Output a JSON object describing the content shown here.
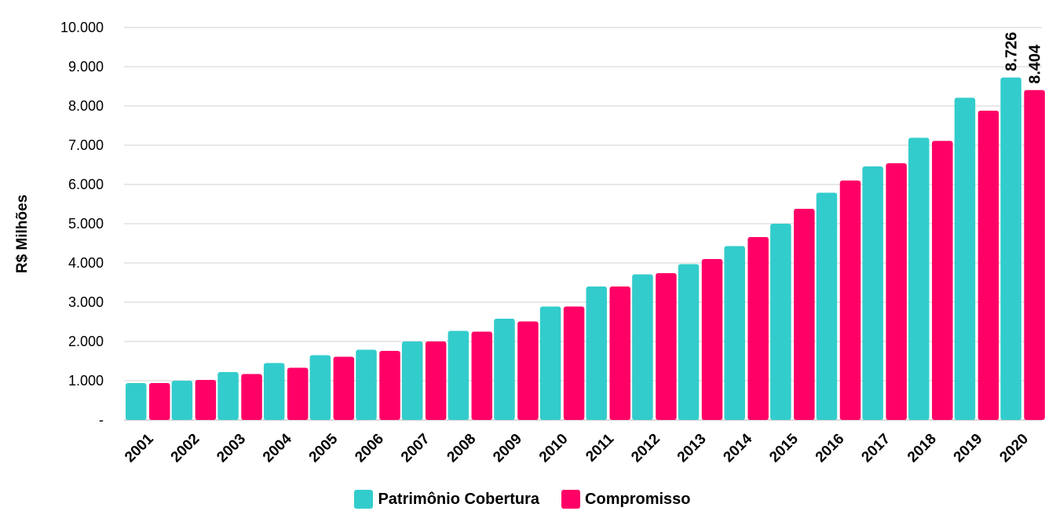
{
  "chart_data": {
    "type": "bar",
    "title": "",
    "xlabel": "",
    "ylabel": "R$ Milhões",
    "ylim": [
      0,
      10000
    ],
    "y_ticks": [
      {
        "value": 0,
        "label": "-"
      },
      {
        "value": 1000,
        "label": "1.000"
      },
      {
        "value": 2000,
        "label": "2.000"
      },
      {
        "value": 3000,
        "label": "3.000"
      },
      {
        "value": 4000,
        "label": "4.000"
      },
      {
        "value": 5000,
        "label": "5.000"
      },
      {
        "value": 6000,
        "label": "6.000"
      },
      {
        "value": 7000,
        "label": "7.000"
      },
      {
        "value": 8000,
        "label": "8.000"
      },
      {
        "value": 9000,
        "label": "9.000"
      },
      {
        "value": 10000,
        "label": "10.000"
      }
    ],
    "grid": true,
    "legend_position": "bottom",
    "categories": [
      "2001",
      "2002",
      "2003",
      "2004",
      "2005",
      "2006",
      "2007",
      "2008",
      "2009",
      "2010",
      "2011",
      "2012",
      "2013",
      "2014",
      "2015",
      "2016",
      "2017",
      "2018",
      "2019",
      "2020"
    ],
    "series": [
      {
        "name": "Patrimônio Cobertura",
        "color": "#33cccc",
        "values": [
          940,
          1000,
          1220,
          1450,
          1650,
          1790,
          2000,
          2270,
          2580,
          2890,
          3400,
          3710,
          3970,
          4430,
          5000,
          5790,
          6460,
          7190,
          8210,
          8726
        ]
      },
      {
        "name": "Compromisso",
        "color": "#ff0066",
        "values": [
          940,
          1020,
          1170,
          1330,
          1610,
          1760,
          2000,
          2250,
          2510,
          2890,
          3400,
          3740,
          4100,
          4660,
          5380,
          6100,
          6540,
          7110,
          7880,
          8404
        ]
      }
    ],
    "data_labels": [
      {
        "series": 0,
        "category": "2020",
        "text": "8.726"
      },
      {
        "series": 1,
        "category": "2020",
        "text": "8.404"
      }
    ]
  }
}
